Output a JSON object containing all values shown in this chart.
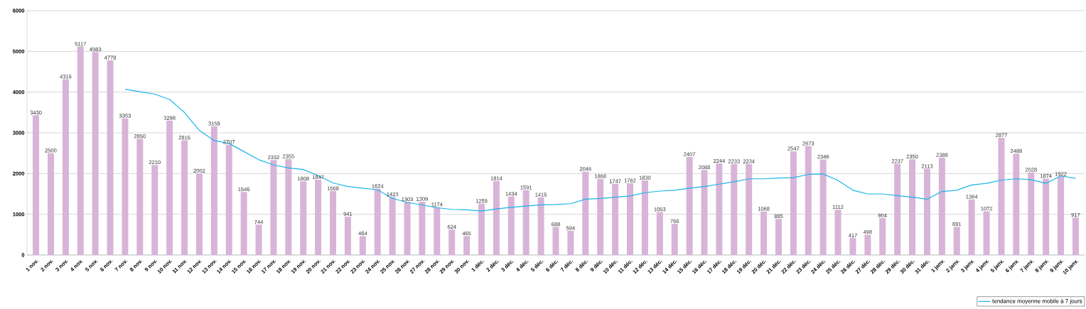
{
  "chart_data": {
    "type": "bar",
    "categories": [
      "1 nov.",
      "2 nov.",
      "3 nov.",
      "4 nov.",
      "5 nov.",
      "6 nov.",
      "7 nov.",
      "8 nov.",
      "9 nov.",
      "10 nov.",
      "11 nov.",
      "12 nov.",
      "13 nov.",
      "14 nov.",
      "15 nov.",
      "16 nov.",
      "17 nov.",
      "18 nov.",
      "19 nov.",
      "20 nov.",
      "21 nov.",
      "22 nov.",
      "23 nov.",
      "24 nov.",
      "25 nov.",
      "26 nov.",
      "27 nov.",
      "28 nov.",
      "29 nov.",
      "30 nov.",
      "1 déc.",
      "2 déc.",
      "3 déc.",
      "4 déc.",
      "5 déc.",
      "6 déc.",
      "7 déc.",
      "8 déc.",
      "9 déc.",
      "10 déc.",
      "11 déc.",
      "12 déc.",
      "13 déc.",
      "14 déc.",
      "15 déc.",
      "16 déc.",
      "17 déc.",
      "18 déc.",
      "19 déc.",
      "20 déc.",
      "21 déc.",
      "22 déc.",
      "23 déc.",
      "24 déc.",
      "25 déc.",
      "26 déc.",
      "27 déc.",
      "28 déc.",
      "29 déc.",
      "30 déc.",
      "31 déc.",
      "1 janv.",
      "2 janv.",
      "3 janv.",
      "4 janv.",
      "5 janv.",
      "6 janv.",
      "7 janv.",
      "8 janv.",
      "9 janv.",
      "10 janv."
    ],
    "series": [
      {
        "color": "#d8b4d8",
        "values": [
          3430,
          2500,
          4315,
          5117,
          4983,
          4778,
          3353,
          2850,
          2210,
          3298,
          2815,
          2002,
          3159,
          2707,
          1546,
          744,
          2332,
          2355,
          1808,
          1847,
          1568,
          941,
          464,
          1624,
          1423,
          1303,
          1309,
          1174,
          624,
          465,
          1259,
          1814,
          1434,
          1591,
          1415,
          688,
          594,
          2046,
          1868,
          1747,
          1762,
          1830,
          1053,
          766,
          2407,
          2088,
          2244,
          2233,
          2234,
          1068,
          885,
          2547,
          2673,
          2346,
          1112,
          417,
          498,
          904,
          2237,
          2350,
          2113,
          2388,
          691,
          1364,
          1072,
          2877,
          2488,
          2028,
          1874,
          1922,
          917
        ],
        "value_labels": [
          "3430",
          "2500",
          "4315",
          "5117",
          "4983",
          "4778",
          "3353",
          "2850",
          "2210",
          "3298",
          "2815",
          "2002",
          "3159",
          "2707",
          "1546",
          "744",
          "2332",
          "2355",
          "1808",
          "1847",
          "1568",
          "941",
          "464",
          "1624",
          "1423",
          "1303",
          "1309",
          "1174",
          "624",
          "465",
          "1259",
          "1814",
          "1434",
          "1591",
          "1415",
          "688",
          "594",
          "2046",
          "1868",
          "1747",
          "1762",
          "1830",
          "1053",
          "766",
          "2407",
          "2088",
          "2244",
          "2233",
          "2234",
          "1068",
          "885",
          "2547",
          "2673",
          "2346",
          "1112",
          "417",
          "498",
          "904",
          "2237",
          "2350",
          "2113",
          "2388",
          "691",
          "1364",
          "1072",
          "2877",
          "2488",
          "2028",
          "1874",
          "1922",
          "917"
        ]
      },
      {
        "type": "line",
        "name": "tendance moyenne mobile à 7 jours",
        "color": "#1ab4e8",
        "values": [
          null,
          null,
          null,
          null,
          null,
          null,
          4070,
          4010,
          3950,
          3820,
          3500,
          3060,
          2810,
          2740,
          2540,
          2340,
          2210,
          2140,
          2100,
          1950,
          1770,
          1680,
          1640,
          1600,
          1390,
          1290,
          1230,
          1160,
          1120,
          1110,
          1080,
          1130,
          1170,
          1200,
          1230,
          1240,
          1260,
          1370,
          1390,
          1420,
          1450,
          1530,
          1570,
          1590,
          1640,
          1680,
          1740,
          1800,
          1870,
          1870,
          1890,
          1900,
          1980,
          1990,
          1830,
          1590,
          1500,
          1500,
          1460,
          1420,
          1370,
          1560,
          1590,
          1720,
          1760,
          1840,
          1870,
          1850,
          1760,
          1940,
          1880
        ]
      }
    ],
    "ylim": [
      0,
      6000
    ],
    "yticks": [
      0,
      1000,
      2000,
      3000,
      4000,
      5000,
      6000
    ],
    "grid": "y",
    "legend": "bottom right"
  }
}
